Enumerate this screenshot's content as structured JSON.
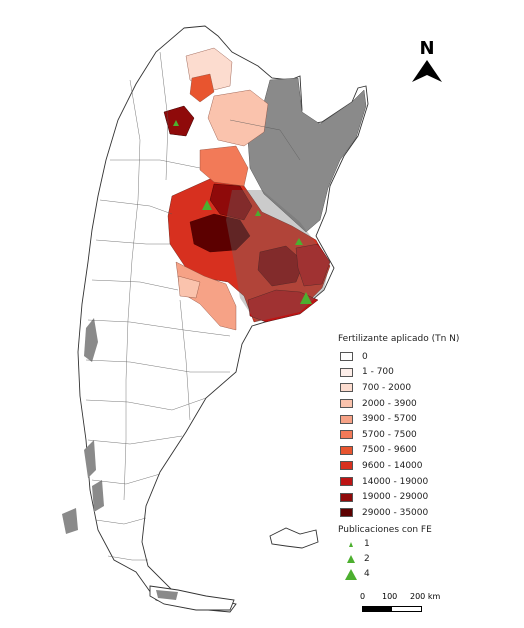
{
  "map": {
    "legend_title": "Fertilizante aplicado (Tn N)",
    "classes": [
      {
        "label": "0",
        "color": "#ffffff"
      },
      {
        "label": "1 - 700",
        "color": "#fdeee9"
      },
      {
        "label": "700 - 2000",
        "color": "#fcdccf"
      },
      {
        "label": "2000 - 3900",
        "color": "#fac3ad"
      },
      {
        "label": "3900 - 5700",
        "color": "#f6a286"
      },
      {
        "label": "5700 - 7500",
        "color": "#f27a58"
      },
      {
        "label": "7500 - 9600",
        "color": "#e8552f"
      },
      {
        "label": "9600 - 14000",
        "color": "#d7301f"
      },
      {
        "label": "14000 - 19000",
        "color": "#bd1414"
      },
      {
        "label": "19000 - 29000",
        "color": "#8f0a0a"
      },
      {
        "label": "29000 - 35000",
        "color": "#5c0000"
      }
    ],
    "publications_title": "Publicaciones con FE",
    "publications": [
      {
        "label": "1",
        "size": "small"
      },
      {
        "label": "2",
        "size": "medium"
      },
      {
        "label": "4",
        "size": "large"
      }
    ],
    "publication_color": "#4caf2f",
    "no_data_color": "#8a8a8a",
    "north_label": "N",
    "scale_labels": [
      "0",
      "100",
      "200 km"
    ]
  }
}
